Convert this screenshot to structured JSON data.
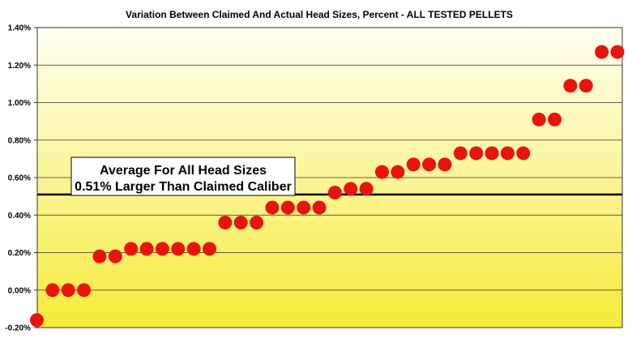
{
  "chart_data": {
    "type": "scatter",
    "title": "Variation Between Claimed And Actual Head Sizes, Percent - ALL TESTED PELLETS",
    "xlabel": "",
    "ylabel": "",
    "ylim": [
      -0.2,
      1.4
    ],
    "y_ticks": [
      "-0.20%",
      "0.00%",
      "0.20%",
      "0.40%",
      "0.60%",
      "0.80%",
      "1.00%",
      "1.20%",
      "1.40%"
    ],
    "y_tick_values": [
      -0.2,
      0.0,
      0.2,
      0.4,
      0.6,
      0.8,
      1.0,
      1.2,
      1.4
    ],
    "grid": true,
    "series": [
      {
        "values": [
          -0.16,
          0.0,
          0.0,
          0.0,
          0.18,
          0.18,
          0.22,
          0.22,
          0.22,
          0.22,
          0.22,
          0.22,
          0.36,
          0.36,
          0.36,
          0.44,
          0.44,
          0.44,
          0.44,
          0.52,
          0.54,
          0.54,
          0.63,
          0.63,
          0.67,
          0.67,
          0.67,
          0.73,
          0.73,
          0.73,
          0.73,
          0.73,
          0.91,
          0.91,
          1.09,
          1.09,
          1.27,
          1.27
        ]
      }
    ],
    "average_line": 0.51,
    "annotation": [
      "Average For All Head Sizes",
      "0.51% Larger Than Claimed Caliber"
    ],
    "colors": {
      "marker": "#e8140c",
      "bg_top": "#fffff4",
      "bg_bottom": "#f6ea3a",
      "grid": "#333333",
      "average_line": "#000000"
    }
  }
}
